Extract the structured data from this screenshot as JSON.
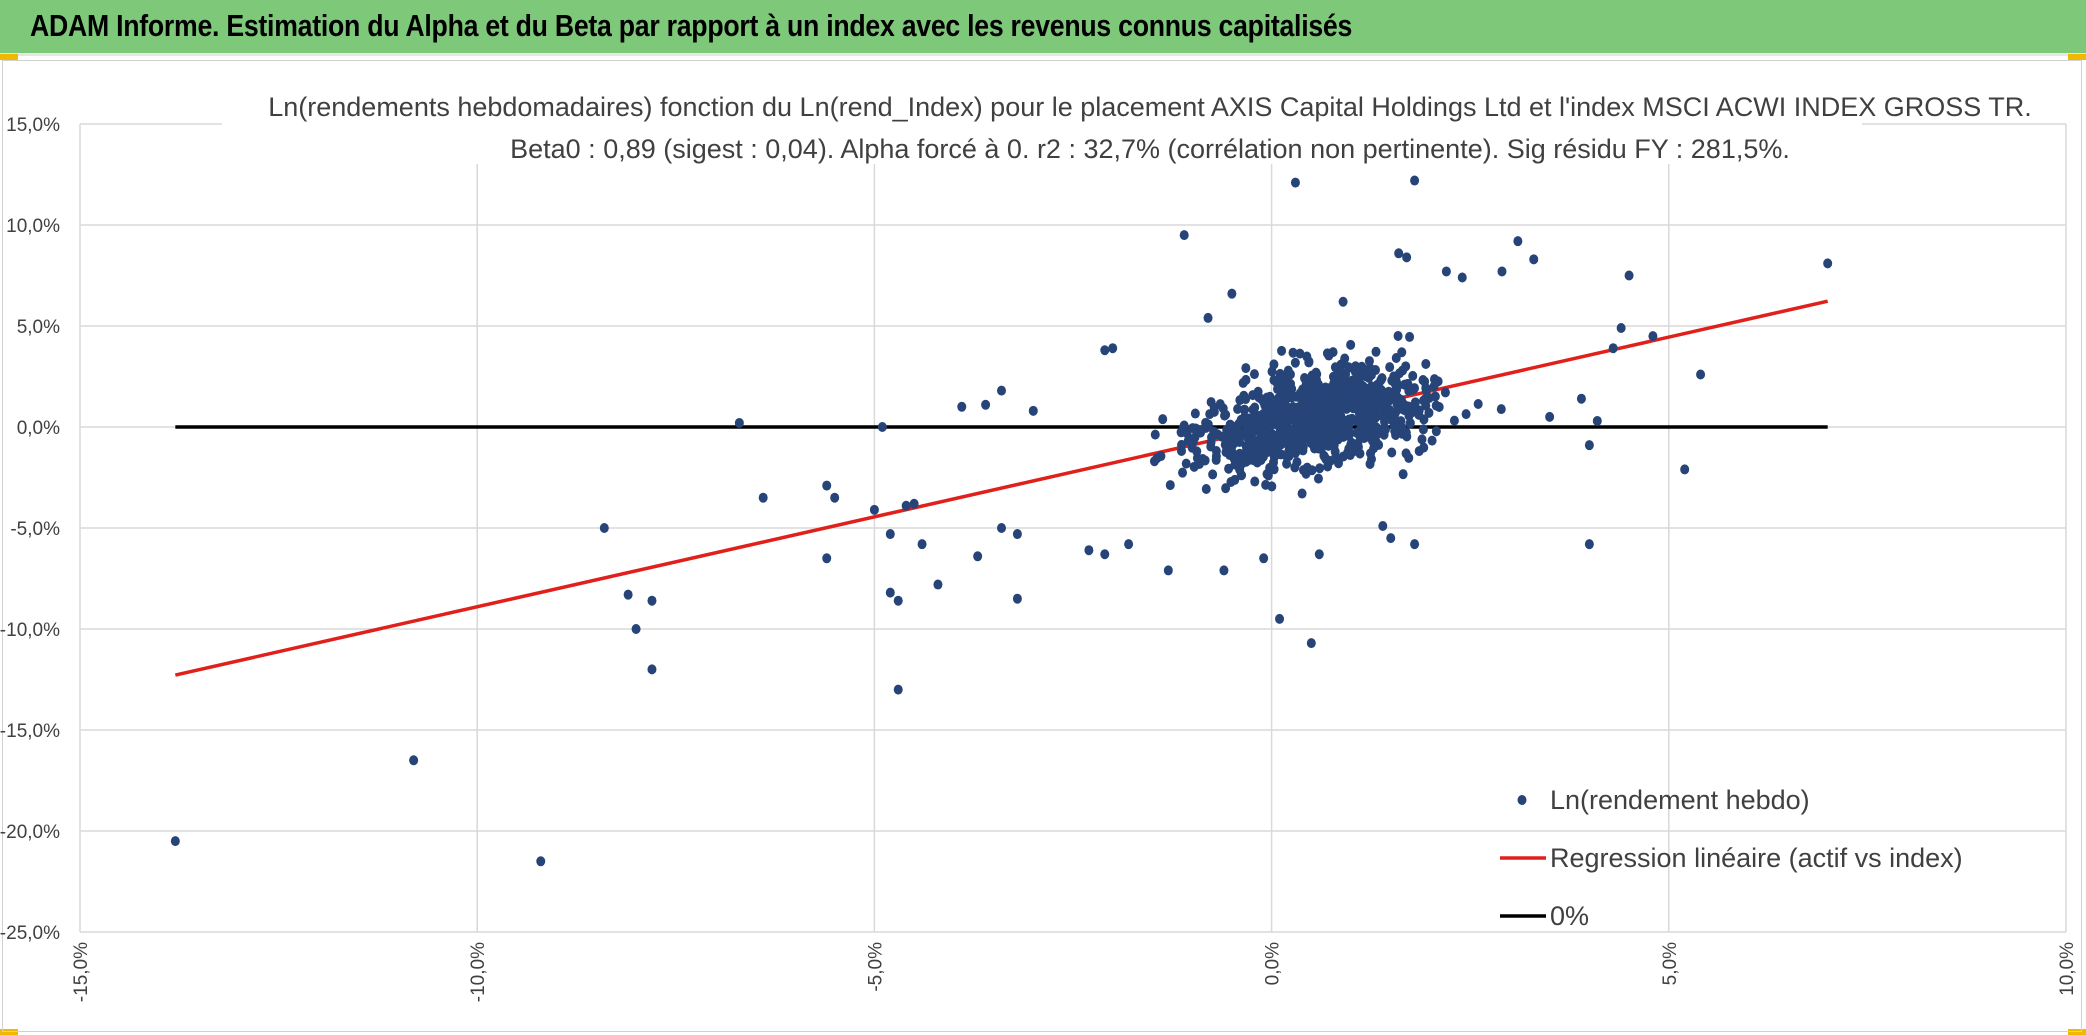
{
  "banner": {
    "title": "ADAM Informe. Estimation du Alpha et du Beta par rapport à un index avec les revenus connus capitalisés",
    "color": "#7ec87a"
  },
  "chart_data": {
    "type": "scatter",
    "title": "Ln(rendements hebdomadaires) fonction du Ln(rend_Index) pour le placement AXIS Capital Holdings Ltd et l'index MSCI ACWI INDEX GROSS TR.",
    "subtitle": "Beta0 : 0,89 (sigest : 0,04). Alpha forcé à 0. r2 : 32,7% (corrélation non pertinente). Sig résidu FY : 281,5%.",
    "xlabel": "",
    "ylabel": "",
    "xlim": [
      -15,
      10
    ],
    "ylim": [
      -25,
      15
    ],
    "x_ticks": [
      "-15,0%",
      "-10,0%",
      "-5,0%",
      "0,0%",
      "5,0%",
      "10,0%"
    ],
    "y_ticks": [
      "15,0%",
      "10,0%",
      "5,0%",
      "0,0%",
      "-5,0%",
      "-10,0%",
      "-15,0%",
      "-20,0%",
      "-25,0%"
    ],
    "x_tick_values": [
      -15,
      -10,
      -5,
      0,
      5,
      10
    ],
    "y_tick_values": [
      15,
      10,
      5,
      0,
      -5,
      -10,
      -15,
      -20,
      -25
    ],
    "grid": true,
    "legend_position": "bottom-right",
    "series": [
      {
        "name": "Ln(rendement hebdo)",
        "kind": "scatter",
        "color": "#264478",
        "cluster_point_count": 900,
        "points": [
          [
            -13.8,
            -20.5
          ],
          [
            -10.8,
            -16.5
          ],
          [
            -9.2,
            -21.5
          ],
          [
            -8.4,
            -5
          ],
          [
            -8.1,
            -8.3
          ],
          [
            -8.0,
            -10
          ],
          [
            -7.8,
            -12
          ],
          [
            -7.8,
            -8.6
          ],
          [
            -6.7,
            0.2
          ],
          [
            -6.4,
            -3.5
          ],
          [
            -5.6,
            -6.5
          ],
          [
            -5.6,
            -2.9
          ],
          [
            -5.5,
            -3.5
          ],
          [
            -5.0,
            -4.1
          ],
          [
            -4.9,
            0
          ],
          [
            -4.8,
            -5.3
          ],
          [
            -4.8,
            -8.2
          ],
          [
            -4.7,
            -8.6
          ],
          [
            -4.7,
            -13
          ],
          [
            -4.6,
            -3.9
          ],
          [
            -4.5,
            -3.8
          ],
          [
            -4.4,
            -5.8
          ],
          [
            -4.2,
            -7.8
          ],
          [
            -3.9,
            1
          ],
          [
            -3.7,
            -6.4
          ],
          [
            -3.6,
            1.1
          ],
          [
            -3.4,
            -5
          ],
          [
            -3.4,
            1.8
          ],
          [
            -3.2,
            -5.3
          ],
          [
            -3.2,
            -8.5
          ],
          [
            -3.0,
            0.8
          ],
          [
            -1.3,
            -7.1
          ],
          [
            -1.1,
            9.5
          ],
          [
            -2.1,
            3.8
          ],
          [
            -2.0,
            3.9
          ],
          [
            0.3,
            12.1
          ],
          [
            1.8,
            12.2
          ],
          [
            0.1,
            -9.5
          ],
          [
            0.5,
            -10.7
          ],
          [
            1.6,
            8.6
          ],
          [
            1.7,
            8.4
          ],
          [
            3.1,
            9.2
          ],
          [
            3.3,
            8.3
          ],
          [
            4.5,
            7.5
          ],
          [
            7.0,
            8.1
          ],
          [
            4.8,
            4.5
          ],
          [
            5.4,
            2.6
          ],
          [
            5.2,
            -2.1
          ],
          [
            4.0,
            -5.8
          ],
          [
            4.0,
            -0.9
          ],
          [
            4.1,
            0.3
          ],
          [
            3.9,
            1.4
          ],
          [
            4.4,
            4.9
          ],
          [
            -0.5,
            6.6
          ],
          [
            -0.8,
            5.4
          ],
          [
            0.9,
            6.2
          ],
          [
            2.4,
            7.4
          ],
          [
            2.2,
            7.7
          ],
          [
            2.9,
            7.7
          ],
          [
            -0.1,
            -6.5
          ],
          [
            0.6,
            -6.3
          ],
          [
            1.5,
            -5.5
          ],
          [
            1.8,
            -5.8
          ],
          [
            1.4,
            -4.9
          ],
          [
            -1.8,
            -5.8
          ],
          [
            -2.3,
            -6.1
          ],
          [
            -2.1,
            -6.3
          ],
          [
            -0.6,
            -7.1
          ],
          [
            3.5,
            0.5
          ],
          [
            4.3,
            3.9
          ]
        ]
      },
      {
        "name": "Regression linéaire (actif vs index)",
        "kind": "line",
        "color": "#e0201b",
        "x": [
          -13.8,
          7.0
        ],
        "y": [
          -12.28,
          6.23
        ]
      },
      {
        "name": "0%",
        "kind": "line",
        "color": "#000000",
        "x": [
          -13.8,
          7.0
        ],
        "y": [
          0,
          0
        ]
      }
    ]
  }
}
